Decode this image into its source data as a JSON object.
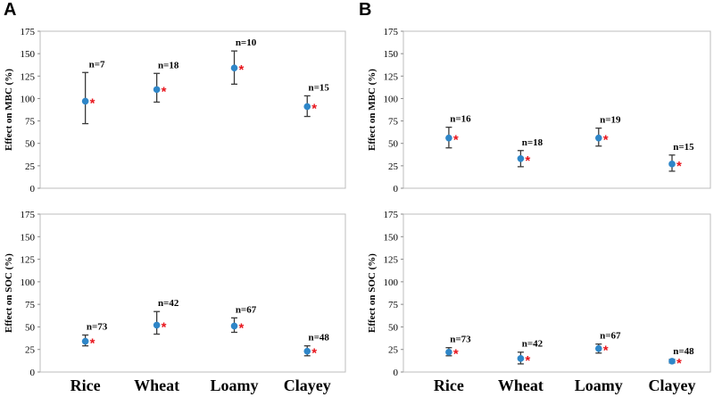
{
  "panel_letters": [
    "A",
    "B"
  ],
  "chart_data": [
    {
      "type": "scatter",
      "panel": "A",
      "ylabel": "Effect on MBC (%)",
      "ylim": [
        0,
        175
      ],
      "yticks": [
        0,
        25,
        50,
        75,
        100,
        125,
        150,
        175
      ],
      "categories": [
        "Rice",
        "Wheat",
        "Loamy",
        "Clayey"
      ],
      "values": [
        97,
        110,
        134,
        91
      ],
      "ci_low": [
        72,
        96,
        116,
        80
      ],
      "ci_high": [
        129,
        128,
        153,
        103
      ],
      "n_labels": [
        "n=7",
        "n=18",
        "n=10",
        "n=15"
      ],
      "significance": [
        "*",
        "*",
        "*",
        "*"
      ],
      "marker_color": "#2e86c8",
      "significance_color": "#e8141b"
    },
    {
      "type": "scatter",
      "panel": "B",
      "ylabel": "Effect on MBC (%)",
      "ylim": [
        0,
        175
      ],
      "yticks": [
        0,
        25,
        50,
        75,
        100,
        125,
        150,
        175
      ],
      "categories": [
        "Rice",
        "Wheat",
        "Loamy",
        "Clayey"
      ],
      "values": [
        56,
        33,
        56,
        27
      ],
      "ci_low": [
        45,
        24,
        47,
        19
      ],
      "ci_high": [
        68,
        42,
        67,
        37
      ],
      "n_labels": [
        "n=16",
        "n=18",
        "n=19",
        "n=15"
      ],
      "significance": [
        "*",
        "*",
        "*",
        "*"
      ],
      "marker_color": "#2e86c8",
      "significance_color": "#e8141b"
    },
    {
      "type": "scatter",
      "panel": "A",
      "ylabel": "Effect on SOC (%)",
      "ylim": [
        0,
        175
      ],
      "yticks": [
        0,
        25,
        50,
        75,
        100,
        125,
        150,
        175
      ],
      "categories": [
        "Rice",
        "Wheat",
        "Loamy",
        "Clayey"
      ],
      "values": [
        34,
        52,
        51,
        23
      ],
      "ci_low": [
        29,
        42,
        44,
        18
      ],
      "ci_high": [
        41,
        67,
        60,
        29
      ],
      "n_labels": [
        "n=73",
        "n=42",
        "n=67",
        "n=48"
      ],
      "significance": [
        "*",
        "*",
        "*",
        "*"
      ],
      "marker_color": "#2e86c8",
      "significance_color": "#e8141b"
    },
    {
      "type": "scatter",
      "panel": "B",
      "ylabel": "Effect on SOC (%)",
      "ylim": [
        0,
        175
      ],
      "yticks": [
        0,
        25,
        50,
        75,
        100,
        125,
        150,
        175
      ],
      "categories": [
        "Rice",
        "Wheat",
        "Loamy",
        "Clayey"
      ],
      "values": [
        22,
        15,
        26,
        12
      ],
      "ci_low": [
        18,
        9,
        21,
        10
      ],
      "ci_high": [
        27,
        22,
        31,
        14
      ],
      "n_labels": [
        "n=73",
        "n=42",
        "n=67",
        "n=48"
      ],
      "significance": [
        "*",
        "*",
        "*",
        "*"
      ],
      "marker_color": "#2e86c8",
      "significance_color": "#e8141b"
    }
  ]
}
